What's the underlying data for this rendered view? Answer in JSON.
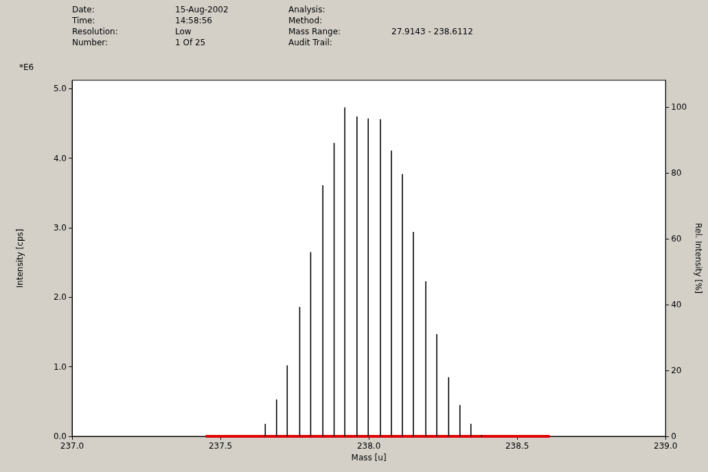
{
  "chart_data": {
    "type": "bar",
    "xlabel": "Mass [u]",
    "ylabel": "Intensity [cps]",
    "y2label": "Rel. Intensity [%]",
    "annotations": [
      "Date:",
      "Time:",
      "Resolution:",
      "Number:",
      "15-Aug-2002",
      "14:58:56",
      "Low",
      "1 Of 25",
      "Analysis:",
      "Method:",
      "Mass Range:",
      "Audit Trail:",
      "27.9143 - 238.6112",
      "*E6"
    ],
    "x": [
      237.651,
      237.689,
      237.725,
      237.767,
      237.804,
      237.845,
      237.883,
      237.919,
      237.96,
      237.998,
      238.039,
      238.076,
      238.113,
      238.15,
      238.192,
      238.229,
      238.269,
      238.307,
      238.344,
      238.38
    ],
    "series": [
      {
        "color": "#000000",
        "values": [
          0.18,
          0.53,
          1.02,
          1.86,
          2.65,
          3.61,
          4.22,
          4.73,
          4.6,
          4.57,
          4.56,
          4.11,
          3.77,
          2.94,
          2.23,
          1.47,
          0.85,
          0.45,
          0.18,
          0.02
        ]
      },
      {
        "type": "line",
        "color": "#e00000",
        "x": [
          237.45,
          238.61
        ],
        "values": [
          0,
          0
        ]
      }
    ],
    "xlim": [
      237.0,
      239.0
    ],
    "xticks": [
      {
        "value": 237.0,
        "label": "237.0"
      },
      {
        "value": 237.5,
        "label": "237.5"
      },
      {
        "value": 238.0,
        "label": "238.0"
      },
      {
        "value": 238.5,
        "label": "238.5"
      },
      {
        "value": 239.0,
        "label": "239.0"
      }
    ],
    "ylim": [
      0,
      5.12
    ],
    "yticks": [
      {
        "value": 0,
        "label": "0.0"
      },
      {
        "value": 1,
        "label": "1.0"
      },
      {
        "value": 2,
        "label": "2.0"
      },
      {
        "value": 3,
        "label": "3.0"
      },
      {
        "value": 4,
        "label": "4.0"
      },
      {
        "value": 5,
        "label": "5.0"
      }
    ],
    "y2lim": [
      0,
      108.2
    ],
    "y2ticks": [
      0,
      20,
      40,
      60,
      80,
      100
    ],
    "grid": false
  }
}
